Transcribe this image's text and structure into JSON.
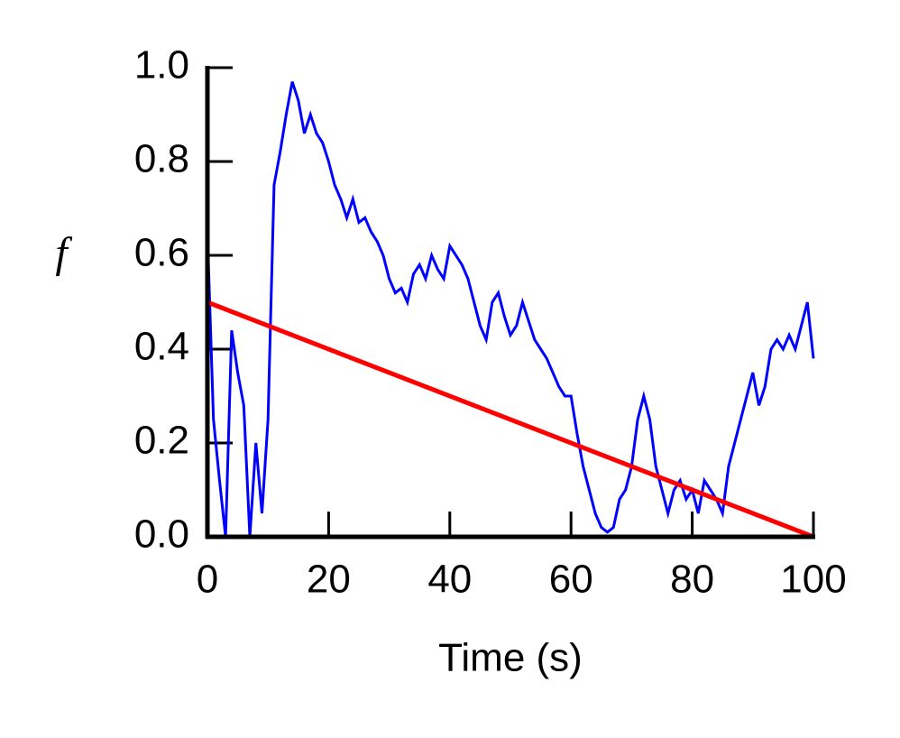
{
  "chart_data": {
    "type": "line",
    "xlabel": "Time (s)",
    "ylabel": "f",
    "xlim": [
      0,
      100
    ],
    "ylim": [
      0,
      1
    ],
    "xticks": [
      0,
      20,
      40,
      60,
      80,
      100
    ],
    "yticks": [
      {
        "value": 0,
        "label": "0.0"
      },
      0.2,
      0.4,
      0.6,
      0.8,
      {
        "value": 1,
        "label": "1.0"
      }
    ],
    "series": [
      {
        "color": "#0000ff",
        "x": [
          0,
          1,
          2,
          3,
          4,
          5,
          6,
          7,
          8,
          9,
          10,
          11,
          12,
          13,
          14,
          15,
          16,
          17,
          18,
          19,
          20,
          21,
          22,
          23,
          24,
          25,
          26,
          27,
          28,
          29,
          30,
          31,
          32,
          33,
          34,
          35,
          36,
          37,
          38,
          39,
          40,
          41,
          42,
          43,
          44,
          45,
          46,
          47,
          48,
          49,
          50,
          51,
          52,
          53,
          54,
          55,
          56,
          57,
          58,
          59,
          60,
          61,
          62,
          63,
          64,
          65,
          66,
          67,
          68,
          69,
          70,
          71,
          72,
          73,
          74,
          75,
          76,
          77,
          78,
          79,
          80,
          81,
          82,
          83,
          84,
          85,
          86,
          87,
          88,
          89,
          90,
          91,
          92,
          93,
          94,
          95,
          96,
          97,
          98,
          99,
          100
        ],
        "values": [
          0.65,
          0.25,
          0.12,
          0.0,
          0.44,
          0.35,
          0.28,
          0.0,
          0.2,
          0.05,
          0.25,
          0.75,
          0.82,
          0.9,
          0.97,
          0.93,
          0.86,
          0.9,
          0.86,
          0.84,
          0.8,
          0.75,
          0.72,
          0.68,
          0.72,
          0.67,
          0.68,
          0.65,
          0.63,
          0.6,
          0.55,
          0.52,
          0.53,
          0.5,
          0.56,
          0.58,
          0.55,
          0.6,
          0.57,
          0.55,
          0.62,
          0.6,
          0.58,
          0.55,
          0.5,
          0.45,
          0.42,
          0.5,
          0.52,
          0.47,
          0.43,
          0.45,
          0.5,
          0.46,
          0.42,
          0.4,
          0.38,
          0.35,
          0.32,
          0.3,
          0.3,
          0.22,
          0.15,
          0.1,
          0.05,
          0.02,
          0.01,
          0.02,
          0.08,
          0.1,
          0.15,
          0.25,
          0.3,
          0.25,
          0.15,
          0.1,
          0.05,
          0.1,
          0.12,
          0.08,
          0.1,
          0.05,
          0.12,
          0.1,
          0.08,
          0.05,
          0.15,
          0.2,
          0.25,
          0.3,
          0.35,
          0.28,
          0.32,
          0.4,
          0.42,
          0.4,
          0.43,
          0.4,
          0.45,
          0.5,
          0.38
        ]
      },
      {
        "color": "#ff0000",
        "x": [
          0,
          100
        ],
        "values": [
          0.5,
          0
        ]
      }
    ]
  }
}
